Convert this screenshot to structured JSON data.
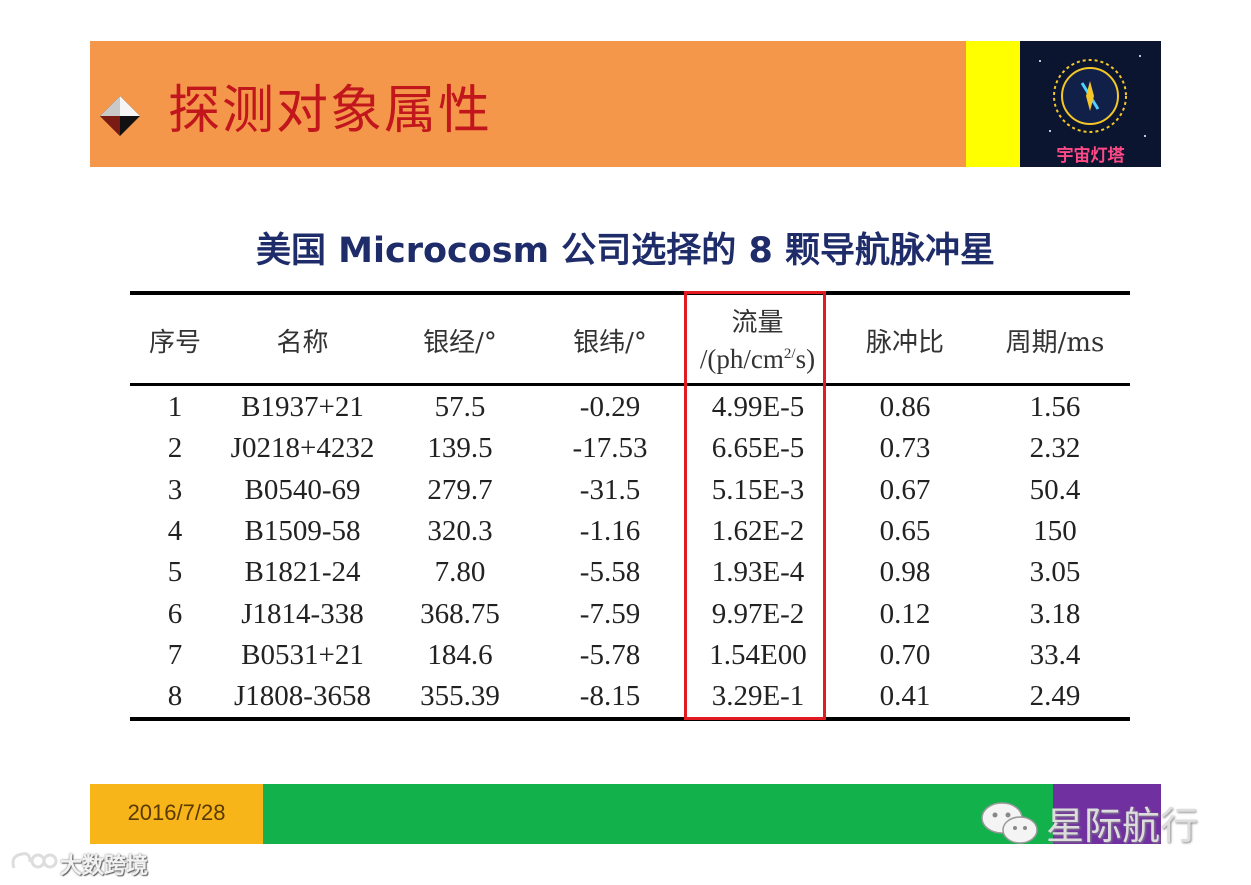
{
  "header": {
    "title": "探测对象属性",
    "logo_text": "宇宙灯塔",
    "colors": {
      "band": "#f4974b",
      "accent": "#ffff00",
      "title": "#c0161c"
    }
  },
  "table_title": "美国 Microcosm 公司选择的 8 颗导航脉冲星",
  "table": {
    "headers": {
      "index": "序号",
      "name": "名称",
      "glon": "银经/°",
      "glat": "银纬/°",
      "flux_line1": "流量",
      "flux_line2": "/(ph/cm",
      "flux_sup": "2/",
      "flux_line2_end": "s)",
      "pulse_ratio": "脉冲比",
      "period": "周期/ms"
    },
    "rows": [
      [
        "1",
        "B1937+21",
        "57.5",
        "-0.29",
        "4.99E-5",
        "0.86",
        "1.56"
      ],
      [
        "2",
        "J0218+4232",
        "139.5",
        "-17.53",
        "6.65E-5",
        "0.73",
        "2.32"
      ],
      [
        "3",
        "B0540-69",
        "279.7",
        "-31.5",
        "5.15E-3",
        "0.67",
        "50.4"
      ],
      [
        "4",
        "B1509-58",
        "320.3",
        "-1.16",
        "1.62E-2",
        "0.65",
        "150"
      ],
      [
        "5",
        "B1821-24",
        "7.80",
        "-5.58",
        "1.93E-4",
        "0.98",
        "3.05"
      ],
      [
        "6",
        "J1814-338",
        "368.75",
        "-7.59",
        "9.97E-2",
        "0.12",
        "3.18"
      ],
      [
        "7",
        "B0531+21",
        "184.6",
        "-5.78",
        "1.54E00",
        "0.70",
        "33.4"
      ],
      [
        "8",
        "J1808-3658",
        "355.39",
        "-8.15",
        "3.29E-1",
        "0.41",
        "2.49"
      ]
    ],
    "highlight_color": "#e21a22"
  },
  "footer": {
    "date": "2016/7/28",
    "watermark": "星际航行",
    "watermark2": "大数跨境"
  }
}
